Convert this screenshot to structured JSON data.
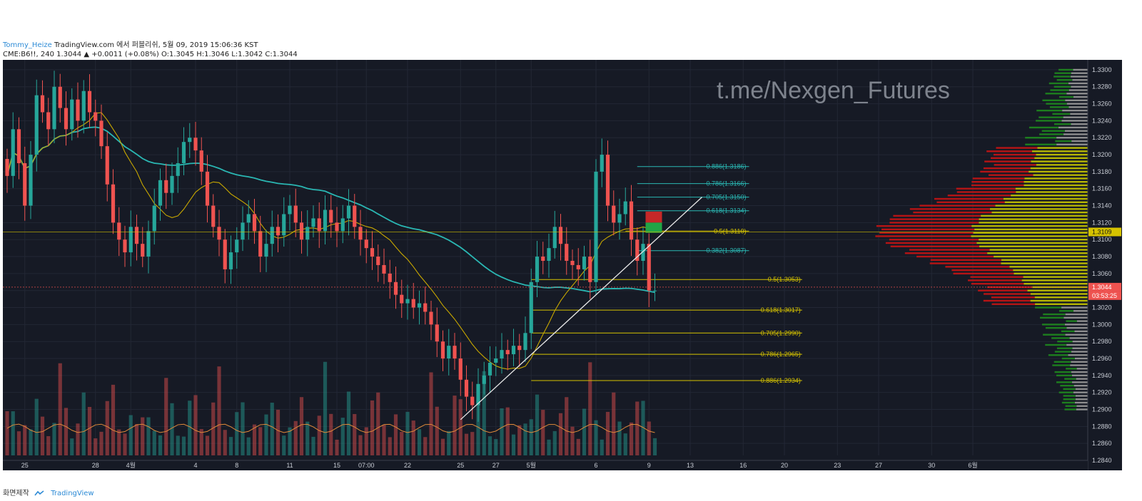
{
  "header": {
    "user": "Tommy_Heize",
    "published": "TradingView.com 에서 퍼블리쉬, 5월 09, 2019 15:06:36 KST"
  },
  "symbol_line": {
    "symbol": "CME:B6!!, 240",
    "last": "1.3044",
    "change": "+0.0011 (+0.08%)",
    "ohlc_o": "O:1.3045",
    "ohlc_h": "H:1.3046",
    "ohlc_l": "L:1.3042",
    "ohlc_c": "C:1.3044"
  },
  "watermark": "t.me/Nexgen_Futures",
  "footer": {
    "label": "화면제작",
    "brand": "TradingView"
  },
  "colors": {
    "bg": "#161a25",
    "up": "#26a69a",
    "down": "#ef5350",
    "ma_fast": "#c8a800",
    "ma_slow": "#2ab7b3",
    "fib_upper": "#2ab7b3",
    "fib_lower": "#d6c300",
    "trendline": "#e8e8e8",
    "vp_red": "#c81414",
    "vp_yellow": "#c8c800",
    "vp_green": "#1e8a1e",
    "vp_gray": "#9a9a9a"
  },
  "chart_data": {
    "type": "candlestick",
    "instrument": "CME:B6!!, 240",
    "ylim": [
      1.284,
      1.331
    ],
    "y_ticks": [
      "1.3300",
      "1.3280",
      "1.3260",
      "1.3240",
      "1.3220",
      "1.3200",
      "1.3180",
      "1.3160",
      "1.3140",
      "1.3120",
      "1.3100",
      "1.3080",
      "1.3060",
      "1.3040",
      "1.3020",
      "1.3000",
      "1.2980",
      "1.2960",
      "1.2940",
      "1.2920",
      "1.2900",
      "1.2880",
      "1.2860",
      "1.2840"
    ],
    "x_ticks": [
      {
        "label": "25",
        "i": 3
      },
      {
        "label": "28",
        "i": 15
      },
      {
        "label": "4월",
        "i": 21
      },
      {
        "label": "4",
        "i": 32
      },
      {
        "label": "8",
        "i": 39
      },
      {
        "label": "11",
        "i": 48
      },
      {
        "label": "15",
        "i": 56
      },
      {
        "label": "07:00",
        "i": 61
      },
      {
        "label": "22",
        "i": 68
      },
      {
        "label": "25",
        "i": 77
      },
      {
        "label": "27",
        "i": 83
      },
      {
        "label": "5월",
        "i": 89
      },
      {
        "label": "6",
        "i": 100
      },
      {
        "label": "9",
        "i": 109
      },
      {
        "label": "13",
        "i": 116
      },
      {
        "label": "16",
        "i": 125
      },
      {
        "label": "20",
        "i": 132
      },
      {
        "label": "23",
        "i": 141
      },
      {
        "label": "27",
        "i": 148
      },
      {
        "label": "30",
        "i": 157
      },
      {
        "label": "6월",
        "i": 164
      }
    ],
    "last_bar_index": 110,
    "closes": [
      1.3175,
      1.323,
      1.319,
      1.314,
      1.32,
      1.327,
      1.325,
      1.323,
      1.328,
      1.3255,
      1.323,
      1.3265,
      1.324,
      1.3275,
      1.325,
      1.324,
      1.321,
      1.3165,
      1.312,
      1.31,
      1.3085,
      1.3115,
      1.3095,
      1.308,
      1.311,
      1.314,
      1.317,
      1.3155,
      1.3175,
      1.319,
      1.3215,
      1.322,
      1.3205,
      1.318,
      1.314,
      1.3115,
      1.31,
      1.3065,
      1.3085,
      1.31,
      1.312,
      1.313,
      1.311,
      1.308,
      1.3095,
      1.3115,
      1.3105,
      1.313,
      1.314,
      1.312,
      1.31,
      1.3115,
      1.3125,
      1.311,
      1.3135,
      1.312,
      1.311,
      1.3125,
      1.314,
      1.3115,
      1.31,
      1.309,
      1.308,
      1.307,
      1.306,
      1.305,
      1.3035,
      1.3025,
      1.303,
      1.302,
      1.3025,
      1.3015,
      1.3,
      1.298,
      1.296,
      1.2975,
      1.296,
      1.2935,
      1.2915,
      1.2905,
      1.293,
      1.294,
      1.2955,
      1.296,
      1.297,
      1.2965,
      1.2975,
      1.297,
      1.299,
      1.305,
      1.308,
      1.3075,
      1.309,
      1.3115,
      1.3095,
      1.3075,
      1.307,
      1.3065,
      1.308,
      1.305,
      1.318,
      1.32,
      1.314,
      1.312,
      1.313,
      1.3145,
      1.31,
      1.3075,
      1.3095,
      1.304,
      1.304
    ],
    "moving_averages": [
      {
        "name": "MA fast",
        "color": "#c8a800"
      },
      {
        "name": "MA slow",
        "color": "#2ab7b3"
      }
    ],
    "fibonacci_upper": [
      {
        "label": "0.886(1.3186)",
        "level": 1.3186
      },
      {
        "label": "0.786(1.3166)",
        "level": 1.3166
      },
      {
        "label": "0.705(1.3150)",
        "level": 1.315
      },
      {
        "label": "0.618(1.3134)",
        "level": 1.3134
      },
      {
        "label": "0.5(1.3110)",
        "level": 1.311
      },
      {
        "label": "0.382(1.3087)",
        "level": 1.3087
      }
    ],
    "fibonacci_lower": [
      {
        "label": "0.5(1.3053)",
        "level": 1.3053
      },
      {
        "label": "0.618(1.3017)",
        "level": 1.3017
      },
      {
        "label": "0.705(1.2990)",
        "level": 1.299
      },
      {
        "label": "0.786(1.2965)",
        "level": 1.2965
      },
      {
        "label": "0.886(1.2934)",
        "level": 1.2934
      }
    ],
    "trendline": {
      "from": {
        "i": 77,
        "price": 1.2888
      },
      "to": {
        "i": 118,
        "price": 1.315
      }
    },
    "trade_box": {
      "i_from": 106,
      "i_to": 110,
      "target_top": 1.3128,
      "target_bottom": 1.312,
      "stop_bottom": 1.3108
    },
    "price_labels": [
      {
        "text": "1.3109",
        "price": 1.3109,
        "bg": "#d6c300",
        "fg": "#111111"
      },
      {
        "text": "1.3044",
        "price": 1.3044,
        "bg": "#ef5350",
        "fg": "#ffffff"
      },
      {
        "text": "03:53:25",
        "price": 1.3034,
        "bg": "#ef5350",
        "fg": "#ffffff"
      }
    ],
    "volume_profile": {
      "upper_bounds": [
        1.33,
        1.322
      ],
      "value_area": [
        1.302,
        1.321
      ],
      "poc": 1.3109,
      "lower_bounds": [
        1.29,
        1.3
      ]
    }
  }
}
